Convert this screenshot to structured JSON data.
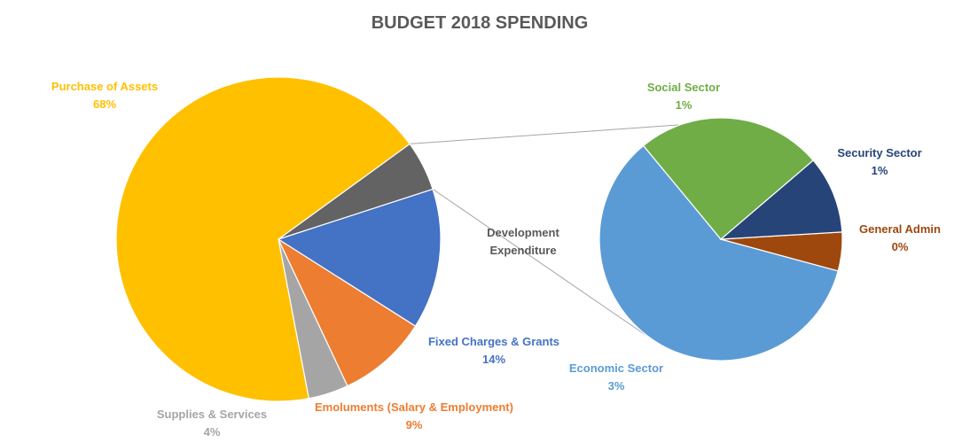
{
  "chart_data": {
    "type": "pie",
    "title": "BUDGET 2018 SPENDING",
    "main_pie": {
      "slices": [
        {
          "key": "supplies",
          "label": "Supplies & Services",
          "value_label": "4%",
          "value": 4,
          "color": "#A5A5A5"
        },
        {
          "key": "emoluments",
          "label": "Emoluments (Salary & Employment)",
          "value_label": "9%",
          "value": 9,
          "color": "#ED7D31"
        },
        {
          "key": "fixed",
          "label": "Fixed Charges & Grants",
          "value_label": "14%",
          "value": 14,
          "color": "#4472C4"
        },
        {
          "key": "development",
          "label": "Development Expenditure",
          "value_label": "",
          "value": 5,
          "color": "#636363"
        },
        {
          "key": "assets",
          "label": "Purchase of Assets",
          "value_label": "68%",
          "value": 68,
          "color": "#FFC000"
        }
      ]
    },
    "secondary_pie": {
      "parent": "Development Expenditure",
      "slices": [
        {
          "key": "economic",
          "label": "Economic Sector",
          "value_label": "3%",
          "value": 2.9,
          "color": "#5B9BD5"
        },
        {
          "key": "general",
          "label": "General Admin",
          "value_label": "0%",
          "value": 0.25,
          "color": "#9E480E"
        },
        {
          "key": "security",
          "label": "Security Sector",
          "value_label": "1%",
          "value": 0.5,
          "color": "#264478"
        },
        {
          "key": "social",
          "label": "Social Sector",
          "value_label": "1%",
          "value": 1.2,
          "color": "#70AD47"
        }
      ]
    },
    "connector_color": "#A6A6A6",
    "title_color": "#595959"
  }
}
